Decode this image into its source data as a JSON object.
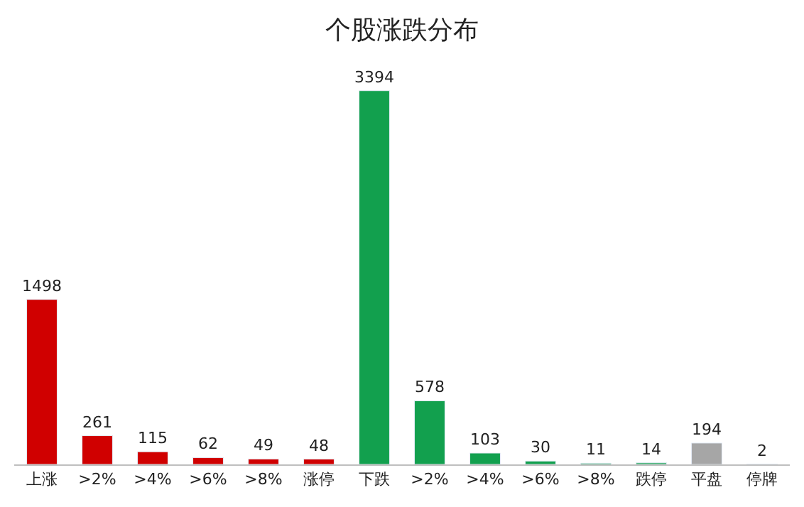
{
  "chart_data": {
    "type": "bar",
    "title": "个股涨跌分布",
    "categories": [
      "上涨",
      ">2%",
      ">4%",
      ">6%",
      ">8%",
      "涨停",
      "下跌",
      ">2%",
      ">4%",
      ">6%",
      ">8%",
      "跌停",
      "平盘",
      "停牌"
    ],
    "values": [
      1498,
      261,
      115,
      62,
      49,
      48,
      3394,
      578,
      103,
      30,
      11,
      14,
      194,
      2
    ],
    "colors": [
      "#d00000",
      "#d00000",
      "#d00000",
      "#d00000",
      "#d00000",
      "#d00000",
      "#12a04e",
      "#12a04e",
      "#12a04e",
      "#12a04e",
      "#12a04e",
      "#12a04e",
      "#a6a6a6",
      "#404040"
    ],
    "data_labels": true,
    "tick_labels": "x"
  }
}
